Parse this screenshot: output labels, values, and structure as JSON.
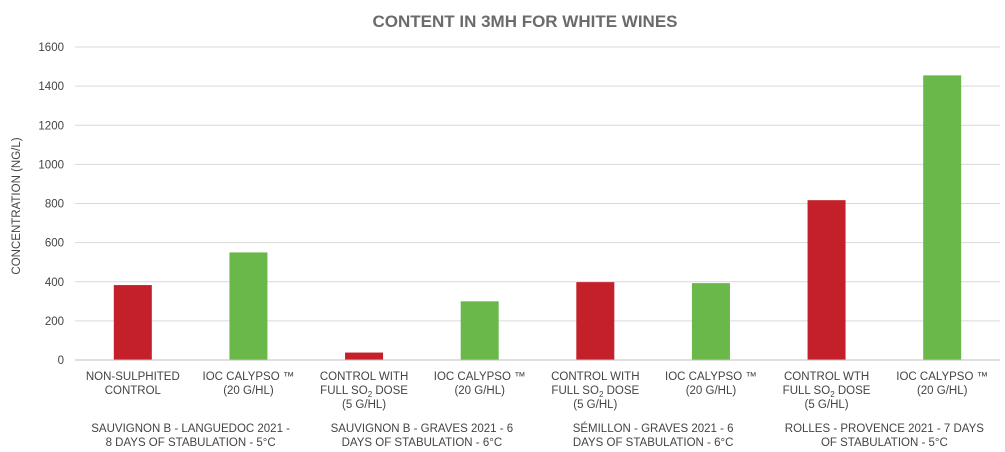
{
  "colors": {
    "red": "#c3202a",
    "green": "#6ab84a",
    "grid": "#d9d9d9",
    "text": "#444444",
    "title": "#6b6b6b"
  },
  "chart_data": {
    "type": "bar",
    "title": "CONTENT IN 3MH FOR WHITE WINES",
    "xlabel": "",
    "ylabel": "CONCENTRATION (NG/L)",
    "ylim": [
      0,
      1600
    ],
    "yticks": [
      "0",
      "200",
      "400",
      "600",
      "800",
      "1000",
      "1200",
      "1400",
      "1600"
    ],
    "grid": true,
    "categories": [
      {
        "lines": [
          "NON-SULPHITED",
          "CONTROL"
        ],
        "value": 383,
        "color": "red"
      },
      {
        "lines": [
          "IOC CALYPSO ™",
          "(20 G/HL)"
        ],
        "value": 550,
        "color": "green"
      },
      {
        "lines": [
          "CONTROL WITH",
          "FULL SO2 DOSE",
          "(5 G/HL)"
        ],
        "value": 38,
        "color": "red"
      },
      {
        "lines": [
          "IOC CALYPSO ™",
          "(20 G/HL)"
        ],
        "value": 300,
        "color": "green"
      },
      {
        "lines": [
          "CONTROL WITH",
          "FULL SO2 DOSE",
          "(5 G/HL)"
        ],
        "value": 398,
        "color": "red"
      },
      {
        "lines": [
          "IOC CALYPSO ™",
          "(20 G/HL)"
        ],
        "value": 393,
        "color": "green"
      },
      {
        "lines": [
          "CONTROL WTH",
          "FULL SO2 DOSE",
          "(5 G/HL)"
        ],
        "value": 817,
        "color": "red"
      },
      {
        "lines": [
          "IOC CALYPSO ™",
          "(20 G/HL)"
        ],
        "value": 1455,
        "color": "green"
      }
    ],
    "groups": [
      {
        "lines": [
          "SAUVIGNON B - LANGUEDOC 2021 -",
          "8 DAYS OF STABULATION  - 5°C"
        ]
      },
      {
        "lines": [
          "SAUVIGNON B - GRAVES 2021 - 6",
          "DAYS OF STABULATION  - 6°C"
        ]
      },
      {
        "lines": [
          "SÉMILLON - GRAVES 2021 - 6",
          "DAYS OF STABULATION  - 6°C"
        ]
      },
      {
        "lines": [
          "ROLLES - PROVENCE 2021 - 7 DAYS",
          "OF STABULATION  - 5°C"
        ]
      }
    ]
  }
}
